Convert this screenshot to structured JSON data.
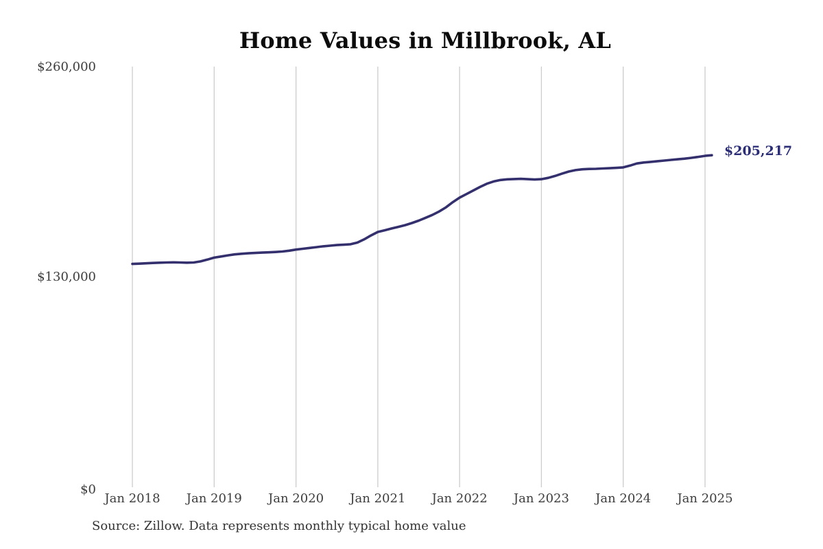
{
  "title": "Home Values in Millbrook, AL",
  "source_note": "Source: Zillow. Data represents monthly typical home value",
  "end_annotation": "$205,217",
  "colors": {
    "line": "#34306e",
    "end_label": "#2b2e77",
    "grid": "#cccccc",
    "axis_text": "#3d3d3d",
    "title_text": "#0c0c0c"
  },
  "chart_data": {
    "type": "line",
    "title": "Home Values in Millbrook, AL",
    "xlabel": "",
    "ylabel": "",
    "frequency": "monthly",
    "x_start": "Jan 2018",
    "x_end": "Feb 2025",
    "x_tick_labels": [
      "Jan 2018",
      "Jan 2019",
      "Jan 2020",
      "Jan 2021",
      "Jan 2022",
      "Jan 2023",
      "Jan 2024",
      "Jan 2025"
    ],
    "y_ticks": [
      {
        "value": 260000,
        "label": "$260,000"
      },
      {
        "value": 130000,
        "label": "$130,000"
      },
      {
        "value": 0,
        "label": "$0"
      }
    ],
    "ylim": [
      0,
      260000
    ],
    "grid": "vertical-only",
    "legend": "none",
    "annotation": {
      "text": "$205,217",
      "value": 205217,
      "x": "Feb 2025"
    },
    "series": [
      {
        "name": "Typical home value",
        "values": [
          138000,
          138200,
          138400,
          138600,
          138800,
          138900,
          139000,
          138900,
          138800,
          138900,
          139600,
          140700,
          141900,
          142600,
          143300,
          143900,
          144300,
          144600,
          144800,
          145000,
          145200,
          145400,
          145700,
          146200,
          146900,
          147400,
          147900,
          148400,
          148900,
          149300,
          149700,
          149900,
          150200,
          151200,
          153200,
          155600,
          157800,
          158800,
          159900,
          160900,
          162000,
          163300,
          164800,
          166500,
          168300,
          170400,
          173000,
          176200,
          179000,
          181200,
          183400,
          185600,
          187600,
          189000,
          189900,
          190300,
          190500,
          190600,
          190400,
          190200,
          190400,
          191200,
          192400,
          193800,
          195100,
          196000,
          196500,
          196700,
          196800,
          197000,
          197200,
          197400,
          197700,
          198800,
          200100,
          200700,
          201100,
          201500,
          201900,
          202300,
          202700,
          203100,
          203600,
          204200,
          204800,
          205217
        ]
      }
    ]
  }
}
